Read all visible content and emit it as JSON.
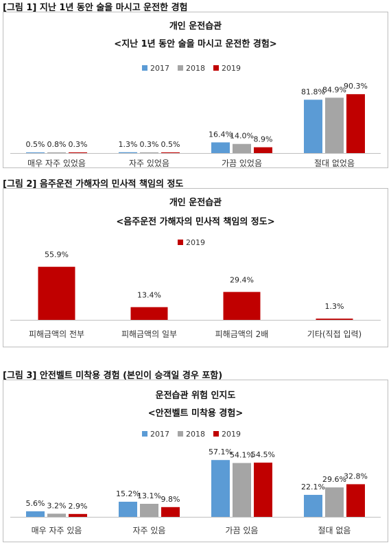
{
  "colors": {
    "2017": "#5b9bd5",
    "2018": "#a5a5a5",
    "2019": "#c00000",
    "axis": "#bfbfbf"
  },
  "figures": [
    {
      "caption": "[그림 1] 지난 1년 동안 술을 마시고 운전한 경험",
      "title": "개인 운전습관",
      "subtitle": "<지난 1년 동안 술을 마시고 운전한 경험>"
    },
    {
      "caption": "[그림 2] 음주운전 가해자의 민사적 책임의 정도",
      "title": "개인 운전습관",
      "subtitle": "<음주운전 가해자의 민사적 책임의 정도>"
    },
    {
      "caption": "[그림 3] 안전벨트 미착용 경험 (본인이 승객일 경우 포함)",
      "title": "운전습관 위험 인지도",
      "subtitle": "<안전벨트 미착용 경험>"
    }
  ],
  "chart_data": [
    {
      "type": "bar",
      "title": "개인 운전습관",
      "subtitle": "<지난 1년 동안 술을 마시고 운전한 경험>",
      "categories": [
        "매우 자주 있었음",
        "자주 있었음",
        "가끔 있었음",
        "절대 없었음"
      ],
      "series": [
        {
          "name": "2017",
          "values": [
            0.5,
            1.3,
            16.4,
            81.8
          ],
          "labels": [
            "0.5%",
            "1.3%",
            "16.4%",
            "81.8%"
          ]
        },
        {
          "name": "2018",
          "values": [
            0.8,
            0.3,
            14.0,
            84.9
          ],
          "labels": [
            "0.8%",
            "0.3%",
            "14.0%",
            "84.9%"
          ]
        },
        {
          "name": "2019",
          "values": [
            0.3,
            0.5,
            8.9,
            90.3
          ],
          "labels": [
            "0.3%",
            "0.5%",
            "8.9%",
            "90.3%"
          ]
        }
      ],
      "legend": "top-center",
      "grid": false,
      "ylim": [
        0,
        100
      ]
    },
    {
      "type": "bar",
      "title": "개인 운전습관",
      "subtitle": "<음주운전 가해자의 민사적 책임의 정도>",
      "categories": [
        "피해금액의 전부",
        "피해금액의 일부",
        "피해금액의 2배",
        "기타(직접 입력)"
      ],
      "series": [
        {
          "name": "2019",
          "values": [
            55.9,
            13.4,
            29.4,
            1.3
          ],
          "labels": [
            "55.9%",
            "13.4%",
            "29.4%",
            "1.3%"
          ]
        }
      ],
      "legend": "top-center",
      "grid": false,
      "ylim": [
        0,
        60
      ]
    },
    {
      "type": "bar",
      "title": "운전습관 위험 인지도",
      "subtitle": "<안전벨트 미착용 경험>",
      "categories": [
        "매우 자주 있음",
        "자주 있음",
        "가끔 있음",
        "절대 없음"
      ],
      "series": [
        {
          "name": "2017",
          "values": [
            5.6,
            15.2,
            57.1,
            22.1
          ],
          "labels": [
            "5.6%",
            "15.2%",
            "57.1%",
            "22.1%"
          ]
        },
        {
          "name": "2018",
          "values": [
            3.2,
            13.1,
            54.1,
            29.6
          ],
          "labels": [
            "3.2%",
            "13.1%",
            "54.1%",
            "29.6%"
          ]
        },
        {
          "name": "2019",
          "values": [
            2.9,
            9.8,
            54.5,
            32.8
          ],
          "labels": [
            "2.9%",
            "9.8%",
            "54.5%",
            "32.8%"
          ]
        }
      ],
      "legend": "top-center",
      "grid": false,
      "ylim": [
        0,
        60
      ]
    }
  ]
}
